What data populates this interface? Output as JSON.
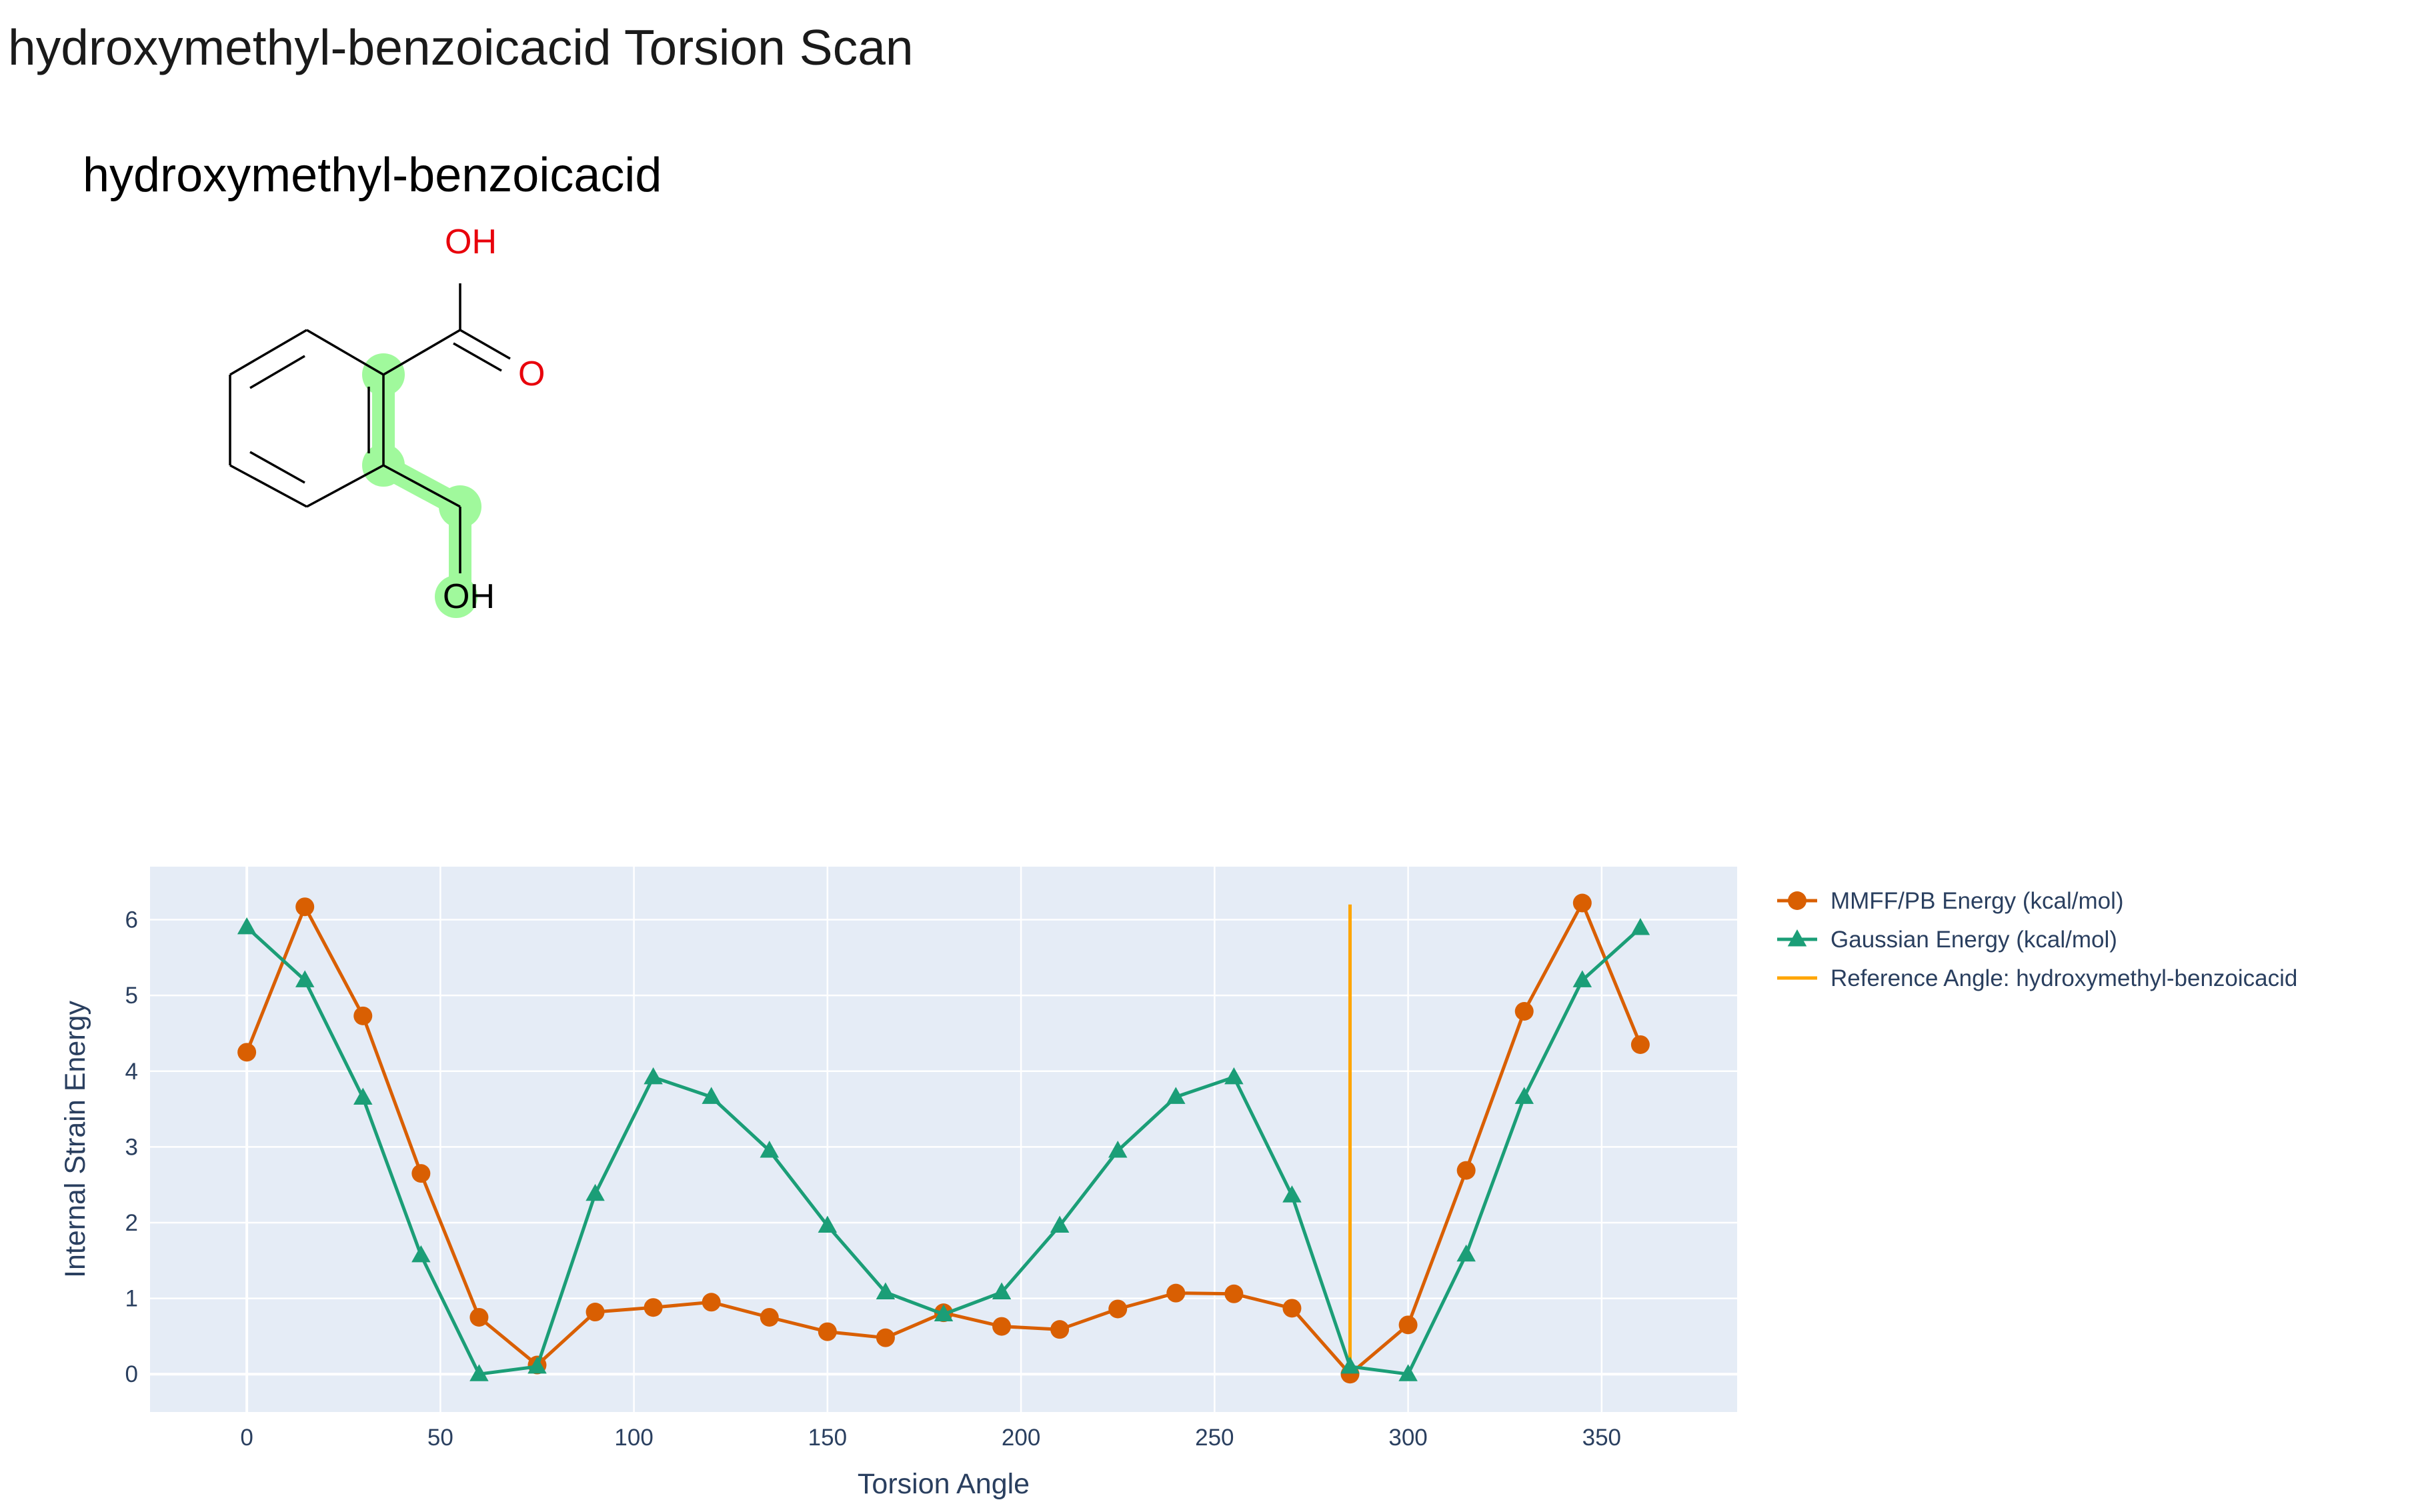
{
  "page": {
    "title": "hydroxymethyl-benzoicacid Torsion Scan"
  },
  "molecule": {
    "name": "hydroxymethyl-benzoicacid",
    "atom_labels": {
      "acid_oh": "OH",
      "carbonyl_o": "O",
      "alcohol_oh": "OH"
    },
    "colors": {
      "bond": "#000000",
      "heteroatom": "#e8000b",
      "highlight": "#a0f99c"
    }
  },
  "chart_data": {
    "type": "line",
    "title": "",
    "xlabel": "Torsion Angle",
    "ylabel": "Internal Strain Energy",
    "xlim": [
      -25,
      385
    ],
    "ylim": [
      -0.5,
      6.7
    ],
    "grid": true,
    "legend_position": "right",
    "x_ticks": [
      0,
      50,
      100,
      150,
      200,
      250,
      300,
      350
    ],
    "y_ticks": [
      0,
      1,
      2,
      3,
      4,
      5,
      6
    ],
    "series": [
      {
        "name": "MMFF/PB Energy (kcal/mol)",
        "marker": "circle",
        "color": "#d95f02",
        "x": [
          0,
          15,
          30,
          45,
          60,
          75,
          90,
          105,
          120,
          135,
          150,
          165,
          180,
          195,
          210,
          225,
          240,
          255,
          270,
          285,
          300,
          315,
          330,
          345,
          360
        ],
        "y": [
          4.25,
          6.17,
          4.73,
          2.65,
          0.75,
          0.12,
          0.82,
          0.88,
          0.95,
          0.75,
          0.56,
          0.48,
          0.81,
          0.63,
          0.59,
          0.86,
          1.07,
          1.06,
          0.87,
          0.0,
          0.65,
          2.69,
          4.79,
          6.22,
          4.35
        ]
      },
      {
        "name": "Gaussian Energy (kcal/mol)",
        "marker": "triangle-up",
        "color": "#1b9e77",
        "x": [
          0,
          15,
          30,
          45,
          60,
          75,
          90,
          105,
          120,
          135,
          150,
          165,
          180,
          195,
          210,
          225,
          240,
          255,
          270,
          285,
          300,
          315,
          330,
          345,
          360
        ],
        "y": [
          5.9,
          5.2,
          3.65,
          1.57,
          0.0,
          0.1,
          2.38,
          3.92,
          3.66,
          2.95,
          1.96,
          1.08,
          0.79,
          1.08,
          1.96,
          2.95,
          3.66,
          3.92,
          2.36,
          0.1,
          0.0,
          1.58,
          3.66,
          5.2,
          5.89
        ]
      },
      {
        "name": "Reference Angle: hydroxymethyl-benzoicacid",
        "marker": "line",
        "color": "#ffa500",
        "x": [
          285,
          285
        ],
        "y": [
          0,
          6.2
        ]
      }
    ]
  }
}
